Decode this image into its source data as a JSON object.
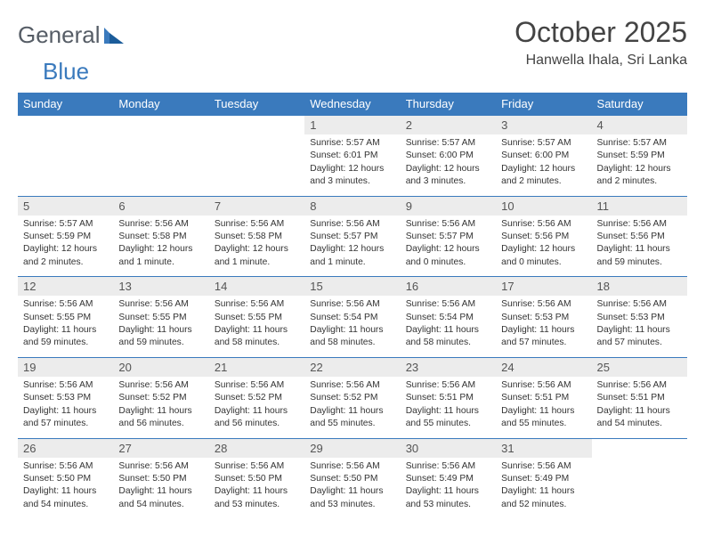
{
  "brand": {
    "part1": "General",
    "part2": "Blue"
  },
  "title": "October 2025",
  "location": "Hanwella Ihala, Sri Lanka",
  "colors": {
    "header_bg": "#3a7abd",
    "header_text": "#ffffff",
    "daynum_bg": "#ececec",
    "text": "#444444",
    "logo_blue": "#3a7abd",
    "logo_gray": "#565d66"
  },
  "fonts": {
    "title_size": 32,
    "location_size": 16,
    "dayhead_size": 13,
    "body_size": 10.3
  },
  "day_headers": [
    "Sunday",
    "Monday",
    "Tuesday",
    "Wednesday",
    "Thursday",
    "Friday",
    "Saturday"
  ],
  "weeks": [
    [
      null,
      null,
      null,
      {
        "n": "1",
        "r": "Sunrise: 5:57 AM",
        "s": "Sunset: 6:01 PM",
        "d": "Daylight: 12 hours and 3 minutes."
      },
      {
        "n": "2",
        "r": "Sunrise: 5:57 AM",
        "s": "Sunset: 6:00 PM",
        "d": "Daylight: 12 hours and 3 minutes."
      },
      {
        "n": "3",
        "r": "Sunrise: 5:57 AM",
        "s": "Sunset: 6:00 PM",
        "d": "Daylight: 12 hours and 2 minutes."
      },
      {
        "n": "4",
        "r": "Sunrise: 5:57 AM",
        "s": "Sunset: 5:59 PM",
        "d": "Daylight: 12 hours and 2 minutes."
      }
    ],
    [
      {
        "n": "5",
        "r": "Sunrise: 5:57 AM",
        "s": "Sunset: 5:59 PM",
        "d": "Daylight: 12 hours and 2 minutes."
      },
      {
        "n": "6",
        "r": "Sunrise: 5:56 AM",
        "s": "Sunset: 5:58 PM",
        "d": "Daylight: 12 hours and 1 minute."
      },
      {
        "n": "7",
        "r": "Sunrise: 5:56 AM",
        "s": "Sunset: 5:58 PM",
        "d": "Daylight: 12 hours and 1 minute."
      },
      {
        "n": "8",
        "r": "Sunrise: 5:56 AM",
        "s": "Sunset: 5:57 PM",
        "d": "Daylight: 12 hours and 1 minute."
      },
      {
        "n": "9",
        "r": "Sunrise: 5:56 AM",
        "s": "Sunset: 5:57 PM",
        "d": "Daylight: 12 hours and 0 minutes."
      },
      {
        "n": "10",
        "r": "Sunrise: 5:56 AM",
        "s": "Sunset: 5:56 PM",
        "d": "Daylight: 12 hours and 0 minutes."
      },
      {
        "n": "11",
        "r": "Sunrise: 5:56 AM",
        "s": "Sunset: 5:56 PM",
        "d": "Daylight: 11 hours and 59 minutes."
      }
    ],
    [
      {
        "n": "12",
        "r": "Sunrise: 5:56 AM",
        "s": "Sunset: 5:55 PM",
        "d": "Daylight: 11 hours and 59 minutes."
      },
      {
        "n": "13",
        "r": "Sunrise: 5:56 AM",
        "s": "Sunset: 5:55 PM",
        "d": "Daylight: 11 hours and 59 minutes."
      },
      {
        "n": "14",
        "r": "Sunrise: 5:56 AM",
        "s": "Sunset: 5:55 PM",
        "d": "Daylight: 11 hours and 58 minutes."
      },
      {
        "n": "15",
        "r": "Sunrise: 5:56 AM",
        "s": "Sunset: 5:54 PM",
        "d": "Daylight: 11 hours and 58 minutes."
      },
      {
        "n": "16",
        "r": "Sunrise: 5:56 AM",
        "s": "Sunset: 5:54 PM",
        "d": "Daylight: 11 hours and 58 minutes."
      },
      {
        "n": "17",
        "r": "Sunrise: 5:56 AM",
        "s": "Sunset: 5:53 PM",
        "d": "Daylight: 11 hours and 57 minutes."
      },
      {
        "n": "18",
        "r": "Sunrise: 5:56 AM",
        "s": "Sunset: 5:53 PM",
        "d": "Daylight: 11 hours and 57 minutes."
      }
    ],
    [
      {
        "n": "19",
        "r": "Sunrise: 5:56 AM",
        "s": "Sunset: 5:53 PM",
        "d": "Daylight: 11 hours and 57 minutes."
      },
      {
        "n": "20",
        "r": "Sunrise: 5:56 AM",
        "s": "Sunset: 5:52 PM",
        "d": "Daylight: 11 hours and 56 minutes."
      },
      {
        "n": "21",
        "r": "Sunrise: 5:56 AM",
        "s": "Sunset: 5:52 PM",
        "d": "Daylight: 11 hours and 56 minutes."
      },
      {
        "n": "22",
        "r": "Sunrise: 5:56 AM",
        "s": "Sunset: 5:52 PM",
        "d": "Daylight: 11 hours and 55 minutes."
      },
      {
        "n": "23",
        "r": "Sunrise: 5:56 AM",
        "s": "Sunset: 5:51 PM",
        "d": "Daylight: 11 hours and 55 minutes."
      },
      {
        "n": "24",
        "r": "Sunrise: 5:56 AM",
        "s": "Sunset: 5:51 PM",
        "d": "Daylight: 11 hours and 55 minutes."
      },
      {
        "n": "25",
        "r": "Sunrise: 5:56 AM",
        "s": "Sunset: 5:51 PM",
        "d": "Daylight: 11 hours and 54 minutes."
      }
    ],
    [
      {
        "n": "26",
        "r": "Sunrise: 5:56 AM",
        "s": "Sunset: 5:50 PM",
        "d": "Daylight: 11 hours and 54 minutes."
      },
      {
        "n": "27",
        "r": "Sunrise: 5:56 AM",
        "s": "Sunset: 5:50 PM",
        "d": "Daylight: 11 hours and 54 minutes."
      },
      {
        "n": "28",
        "r": "Sunrise: 5:56 AM",
        "s": "Sunset: 5:50 PM",
        "d": "Daylight: 11 hours and 53 minutes."
      },
      {
        "n": "29",
        "r": "Sunrise: 5:56 AM",
        "s": "Sunset: 5:50 PM",
        "d": "Daylight: 11 hours and 53 minutes."
      },
      {
        "n": "30",
        "r": "Sunrise: 5:56 AM",
        "s": "Sunset: 5:49 PM",
        "d": "Daylight: 11 hours and 53 minutes."
      },
      {
        "n": "31",
        "r": "Sunrise: 5:56 AM",
        "s": "Sunset: 5:49 PM",
        "d": "Daylight: 11 hours and 52 minutes."
      },
      null
    ]
  ]
}
